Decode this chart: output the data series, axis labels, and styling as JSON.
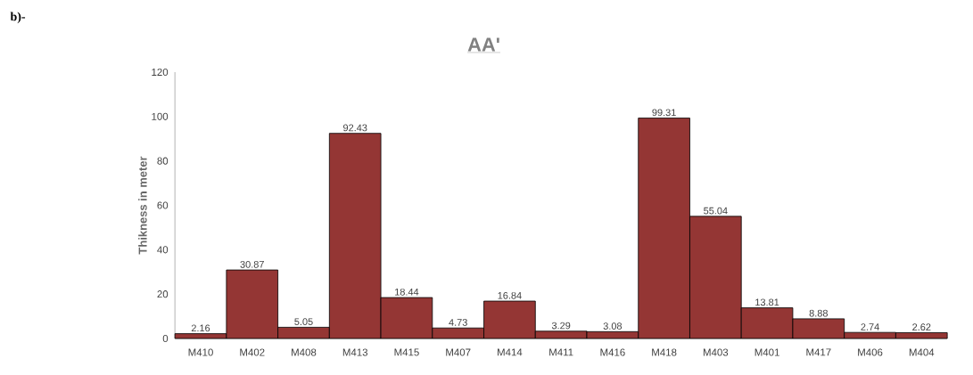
{
  "chart_data": {
    "type": "bar",
    "title": "AA'",
    "ylabel": "Thikness in meter",
    "annotations": [
      "b)-"
    ],
    "categories": [
      "M410",
      "M402",
      "M408",
      "M413",
      "M415",
      "M407",
      "M414",
      "M411",
      "M416",
      "M418",
      "M403",
      "M401",
      "M417",
      "M406",
      "M404"
    ],
    "values": [
      2.16,
      30.87,
      5.05,
      92.43,
      18.44,
      4.73,
      16.84,
      3.29,
      3.08,
      99.31,
      55.04,
      13.81,
      8.88,
      2.74,
      2.62
    ],
    "color": "#943634",
    "data_labels": true,
    "ylim": [
      0,
      120
    ],
    "yticks": [
      0,
      20,
      40,
      60,
      80,
      100,
      120
    ],
    "grid": false
  }
}
